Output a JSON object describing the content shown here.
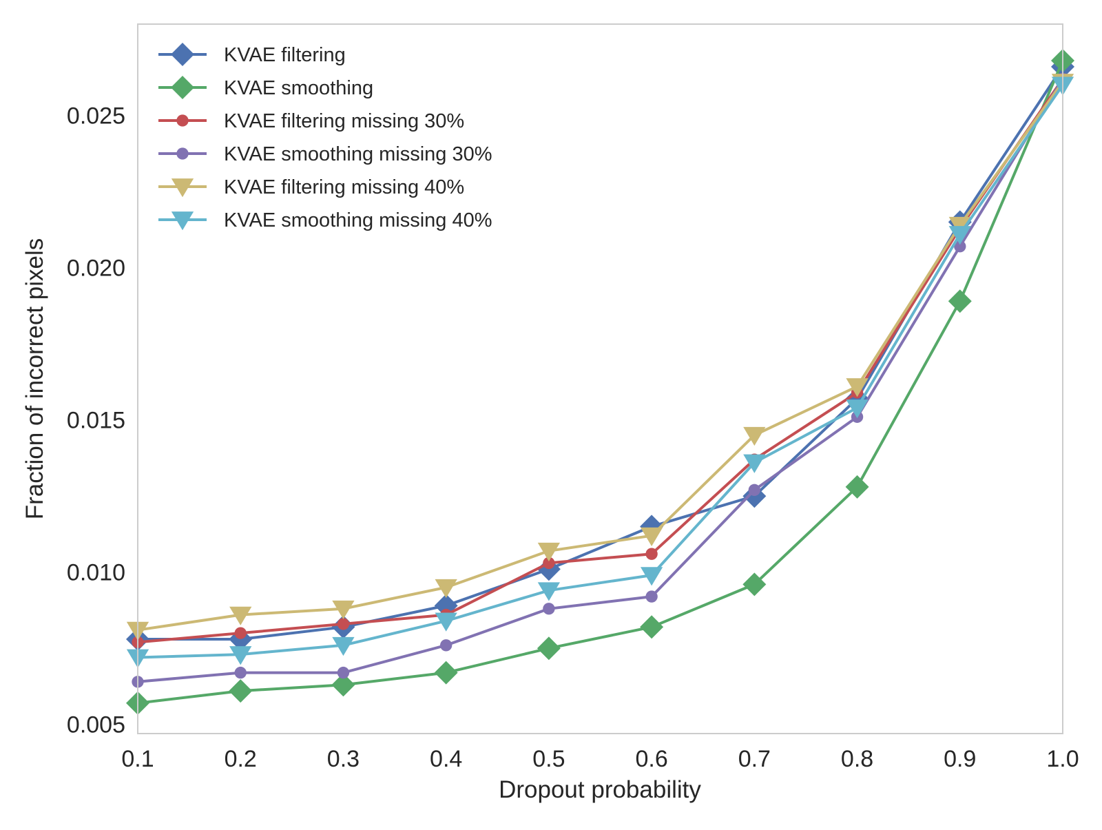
{
  "chart_data": {
    "type": "line",
    "title": "",
    "xlabel": "Dropout probability",
    "ylabel": "Fraction of incorrect pixels",
    "xlim": [
      0.1,
      1.0
    ],
    "ylim": [
      0.0047,
      0.028
    ],
    "grid": false,
    "legend_position": "top-left",
    "x": [
      0.1,
      0.2,
      0.3,
      0.4,
      0.5,
      0.6,
      0.7,
      0.8,
      0.9,
      1.0
    ],
    "x_ticks": [
      {
        "value": 0.1,
        "label": "0.1"
      },
      {
        "value": 0.2,
        "label": "0.2"
      },
      {
        "value": 0.3,
        "label": "0.3"
      },
      {
        "value": 0.4,
        "label": "0.4"
      },
      {
        "value": 0.5,
        "label": "0.5"
      },
      {
        "value": 0.6,
        "label": "0.6"
      },
      {
        "value": 0.7,
        "label": "0.7"
      },
      {
        "value": 0.8,
        "label": "0.8"
      },
      {
        "value": 0.9,
        "label": "0.9"
      },
      {
        "value": 1.0,
        "label": "1.0"
      }
    ],
    "y_ticks": [
      {
        "value": 0.005,
        "label": "0.005"
      },
      {
        "value": 0.01,
        "label": "0.010"
      },
      {
        "value": 0.015,
        "label": "0.015"
      },
      {
        "value": 0.02,
        "label": "0.020"
      },
      {
        "value": 0.025,
        "label": "0.025"
      }
    ],
    "series": [
      {
        "name": "KVAE filtering",
        "color": "#4c72b0",
        "marker": "diamond",
        "values": [
          0.0078,
          0.0078,
          0.0082,
          0.0089,
          0.0101,
          0.0115,
          0.0125,
          0.0157,
          0.0215,
          0.0266
        ]
      },
      {
        "name": "KVAE smoothing",
        "color": "#55a868",
        "marker": "diamond",
        "values": [
          0.0057,
          0.0061,
          0.0063,
          0.0067,
          0.0075,
          0.0082,
          0.0096,
          0.0128,
          0.0189,
          0.0268
        ]
      },
      {
        "name": "KVAE filtering missing 30%",
        "color": "#c44e52",
        "marker": "circle",
        "values": [
          0.0077,
          0.008,
          0.0083,
          0.0086,
          0.0103,
          0.0106,
          0.0137,
          0.0159,
          0.0213,
          0.0262
        ]
      },
      {
        "name": "KVAE smoothing missing 30%",
        "color": "#8172b2",
        "marker": "circle",
        "values": [
          0.0064,
          0.0067,
          0.0067,
          0.0076,
          0.0088,
          0.0092,
          0.0127,
          0.0151,
          0.0207,
          0.0262
        ]
      },
      {
        "name": "KVAE filtering missing 40%",
        "color": "#ccb974",
        "marker": "triangle-down",
        "values": [
          0.0081,
          0.0086,
          0.0088,
          0.0095,
          0.0107,
          0.0112,
          0.0145,
          0.0161,
          0.0214,
          0.0261
        ]
      },
      {
        "name": "KVAE smoothing missing 40%",
        "color": "#64b5cd",
        "marker": "triangle-down",
        "values": [
          0.0072,
          0.0073,
          0.0076,
          0.0084,
          0.0094,
          0.0099,
          0.0136,
          0.0154,
          0.0211,
          0.026
        ]
      }
    ]
  }
}
